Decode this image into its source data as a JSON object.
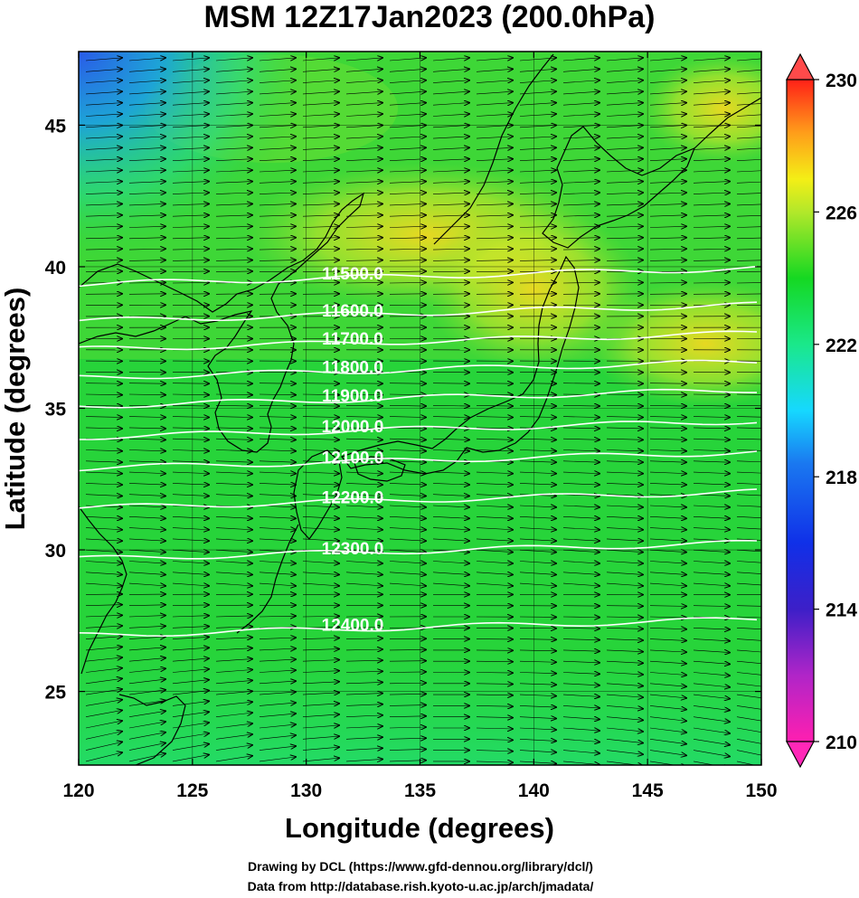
{
  "title": "MSM 12Z17Jan2023 (200.0hPa)",
  "credits": {
    "line1": "Drawing by DCL (https://www.gfd-dennou.org/library/dcl/)",
    "line2": "Data from http://database.rish.kyoto-u.ac.jp/arch/jmadata/"
  },
  "axes": {
    "xlabel": "Longitude (degrees)",
    "ylabel": "Latitude  (degrees)",
    "xlim": [
      120,
      150
    ],
    "ylim": [
      22.4,
      47.6
    ],
    "xticks": [
      "120",
      "125",
      "130",
      "135",
      "140",
      "145",
      "150"
    ],
    "yticks": [
      "25",
      "30",
      "35",
      "40",
      "45"
    ]
  },
  "colorbar": {
    "range": [
      210,
      230
    ],
    "tick_labels": [
      "230",
      "226",
      "222",
      "218",
      "214",
      "210"
    ]
  },
  "contours": [
    {
      "label": "11500.0",
      "lat": 39.7
    },
    {
      "label": "11600.0",
      "lat": 38.4
    },
    {
      "label": "11700.0",
      "lat": 37.4
    },
    {
      "label": "11800.0",
      "lat": 36.4
    },
    {
      "label": "11900.0",
      "lat": 35.4
    },
    {
      "label": "12000.0",
      "lat": 34.3
    },
    {
      "label": "12100.0",
      "lat": 33.2
    },
    {
      "label": "12200.0",
      "lat": 31.8
    },
    {
      "label": "12300.0",
      "lat": 30.0
    },
    {
      "label": "12400.0",
      "lat": 27.3
    }
  ],
  "colors": {
    "field_green": "#27d43a",
    "field_yellow": "#e6e82a",
    "cold_blue": "#2a6fe0",
    "contour": "#ffffff",
    "coast": "#000000"
  }
}
